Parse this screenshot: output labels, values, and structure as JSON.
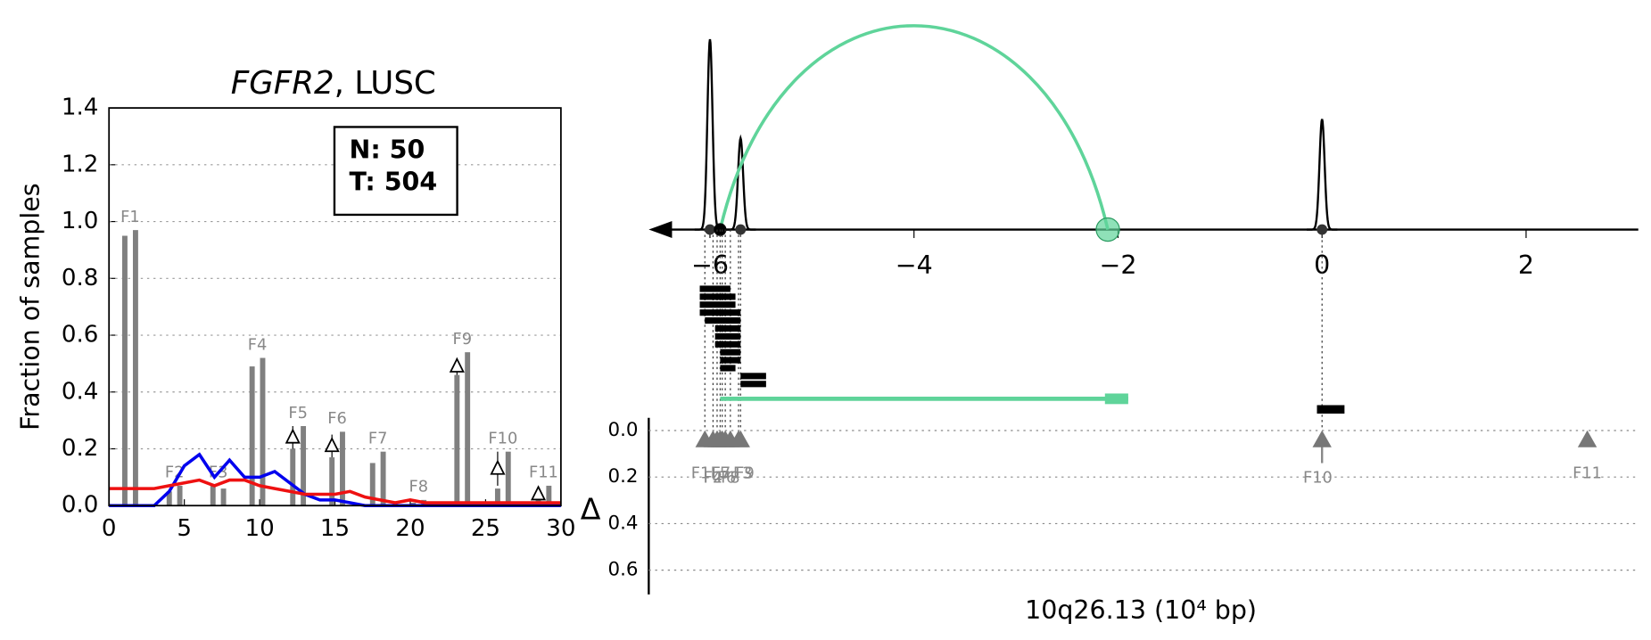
{
  "chart_data": [
    {
      "type": "bar-line",
      "title_gene": "FGFR2",
      "title_rest": ", LUSC",
      "y_label": "Fraction of samples",
      "box_lines": [
        "N: 50",
        "T: 504"
      ],
      "xlim": [
        0,
        30
      ],
      "xticks": [
        0,
        5,
        10,
        15,
        20,
        25,
        30
      ],
      "ylim": [
        0,
        1.4
      ],
      "yticks": [
        {
          "value": 0,
          "label": "0.0"
        },
        {
          "value": 0.2,
          "label": "0.2"
        },
        {
          "value": 0.4,
          "label": "0.4"
        },
        {
          "value": 0.6,
          "label": "0.6"
        },
        {
          "value": 0.8,
          "label": "0.8"
        },
        {
          "value": 1.0,
          "label": "1.0"
        },
        {
          "value": 1.2,
          "label": "1.2"
        },
        {
          "value": 1.4,
          "label": "1.4"
        }
      ],
      "grid": true,
      "bar_color": "#808080",
      "groups": [
        {
          "label": "F1",
          "x": [
            1.05,
            1.76
          ],
          "values": [
            0.95,
            0.97
          ]
        },
        {
          "label": "F2",
          "x": [
            4.0,
            4.7
          ],
          "values": [
            0.05,
            0.07
          ]
        },
        {
          "label": "F3",
          "x": [
            6.9,
            7.6
          ],
          "values": [
            0.07,
            0.06
          ]
        },
        {
          "label": "F4",
          "x": [
            9.5,
            10.2
          ],
          "values": [
            0.49,
            0.52
          ]
        },
        {
          "label": "F5",
          "x": [
            12.2,
            12.9
          ],
          "values": [
            0.2,
            0.28
          ],
          "delta": 0.24,
          "delta_err": 0.04
        },
        {
          "label": "F6",
          "x": [
            14.8,
            15.5
          ],
          "values": [
            0.17,
            0.26
          ],
          "delta": 0.21,
          "delta_err": 0.04
        },
        {
          "label": "F7",
          "x": [
            17.5,
            18.2
          ],
          "values": [
            0.15,
            0.19
          ]
        },
        {
          "label": "F8",
          "x": [
            20.2,
            20.9
          ],
          "values": [
            0.01,
            0.02
          ]
        },
        {
          "label": "F9",
          "x": [
            23.1,
            23.8
          ],
          "values": [
            0.46,
            0.54
          ],
          "delta": 0.49,
          "delta_err": 0.03
        },
        {
          "label": "F10",
          "x": [
            25.8,
            26.5
          ],
          "values": [
            0.06,
            0.19
          ],
          "delta": 0.13,
          "delta_err": 0.06
        },
        {
          "label": "F11",
          "x": [
            28.5,
            29.2
          ],
          "values": [
            0.04,
            0.07
          ],
          "delta": 0.04,
          "delta_err": 0.01
        }
      ],
      "x": [
        0,
        1,
        2,
        3,
        4,
        5,
        6,
        7,
        8,
        9,
        10,
        11,
        12,
        13,
        14,
        15,
        16,
        17,
        18,
        19,
        20,
        21,
        22,
        23,
        24,
        25,
        26,
        27,
        28,
        29,
        30
      ],
      "series": [
        {
          "color": "#0000ee",
          "values": [
            0,
            0,
            0,
            0,
            0.05,
            0.14,
            0.18,
            0.1,
            0.16,
            0.1,
            0.1,
            0.12,
            0.08,
            0.04,
            0.02,
            0.02,
            0.01,
            0,
            0,
            0,
            0,
            0,
            0,
            0,
            0,
            0,
            0,
            0,
            0,
            0,
            0
          ]
        },
        {
          "color": "#ee1111",
          "values": [
            0.06,
            0.06,
            0.06,
            0.06,
            0.07,
            0.08,
            0.09,
            0.07,
            0.09,
            0.09,
            0.07,
            0.06,
            0.05,
            0.04,
            0.04,
            0.04,
            0.05,
            0.03,
            0.02,
            0.01,
            0.02,
            0.01,
            0.01,
            0.01,
            0.01,
            0.01,
            0.01,
            0.01,
            0.01,
            0.01,
            0.01
          ]
        }
      ]
    },
    {
      "type": "genome",
      "x_label": "10q26.13 (10⁴ bp)",
      "y_label": "Δ",
      "xlim": [
        -6.6,
        3.1
      ],
      "xticks": [
        {
          "value": -6,
          "label": "−6"
        },
        {
          "value": -4,
          "label": "−4"
        },
        {
          "value": -2,
          "label": "−2"
        },
        0,
        2
      ],
      "ylim": [
        0,
        0.7
      ],
      "yticks": [
        {
          "value": 0,
          "label": "0.0"
        },
        {
          "value": 0.2,
          "label": "0.2"
        },
        {
          "value": 0.4,
          "label": "0.4"
        },
        {
          "value": 0.6,
          "label": "0.6"
        }
      ],
      "peaks": [
        {
          "x": -6.0,
          "height": 1.0
        },
        {
          "x": -5.7,
          "height": 0.48
        },
        {
          "x": 0,
          "height": 0.58
        }
      ],
      "link": {
        "from": -5.9,
        "to": -2.1,
        "color": "#5fd49a"
      },
      "reads": [
        [
          -6.1,
          -5.8
        ],
        [
          -6.1,
          -5.75
        ],
        [
          -6.1,
          -5.75
        ],
        [
          -6.1,
          -5.7
        ],
        [
          -6.05,
          -5.7
        ],
        [
          -5.95,
          -5.7
        ],
        [
          -5.95,
          -5.7
        ],
        [
          -5.95,
          -5.7
        ],
        [
          -5.9,
          -5.7
        ],
        [
          -5.9,
          -5.7
        ],
        [
          -5.9,
          -5.75
        ],
        [
          -5.7,
          -5.45
        ],
        [
          -5.7,
          -5.45
        ]
      ],
      "split_read": [
        -5.9,
        -1.9
      ],
      "far_read": [
        -0.05,
        0.22
      ],
      "features": [
        {
          "name": "F1",
          "x": -6.05,
          "delta": 0.04
        },
        {
          "name": "F2",
          "x": -5.97,
          "delta": 0.04
        },
        {
          "name": "F3",
          "x": -5.72,
          "delta": 0.04
        },
        {
          "name": "F4",
          "x": -5.93,
          "delta": 0.04
        },
        {
          "name": "F5",
          "x": -5.9,
          "delta": 0.04
        },
        {
          "name": "F6",
          "x": -5.88,
          "delta": 0.04
        },
        {
          "name": "F7",
          "x": -5.85,
          "delta": 0.04
        },
        {
          "name": "F8",
          "x": -5.8,
          "delta": 0.04
        },
        {
          "name": "F9",
          "x": -5.7,
          "delta": 0.04
        },
        {
          "name": "F10",
          "x": 0,
          "delta": 0.04,
          "spread": 0.14
        },
        {
          "name": "F11",
          "x": 2.6,
          "delta": 0.04
        }
      ]
    }
  ]
}
